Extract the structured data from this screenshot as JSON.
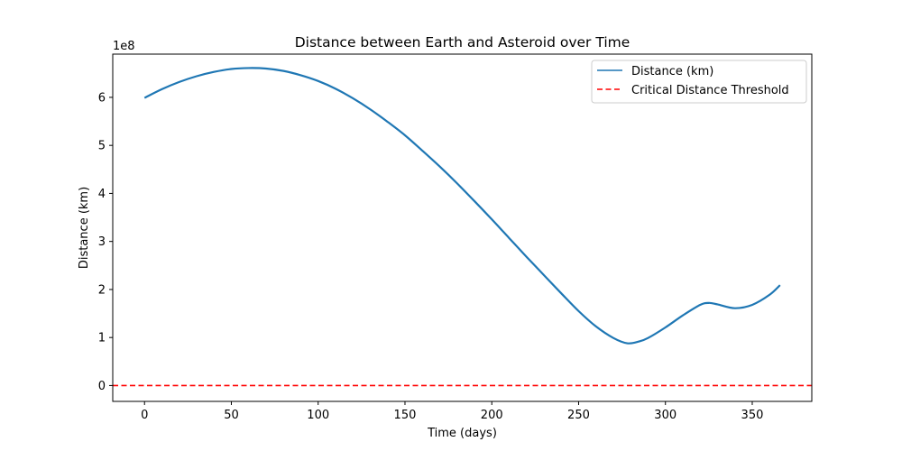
{
  "chart_data": {
    "type": "line",
    "title": "Distance between Earth and Asteroid over Time",
    "xlabel": "Time (days)",
    "ylabel": "Distance (km)",
    "y_multiplier_label": "1e8",
    "xlim": [
      -18.3,
      384.3
    ],
    "ylim": [
      -33000000.0,
      690000000.0
    ],
    "xticks": [
      0,
      50,
      100,
      150,
      200,
      250,
      300,
      350
    ],
    "yticks": [
      0,
      1,
      2,
      3,
      4,
      5,
      6
    ],
    "grid": false,
    "legend_position": "upper right",
    "series": [
      {
        "name": "Distance (km)",
        "color": "#1f77b4",
        "x": [
          0,
          10,
          20,
          30,
          40,
          50,
          60,
          70,
          80,
          90,
          100,
          110,
          120,
          130,
          140,
          150,
          160,
          170,
          180,
          190,
          200,
          210,
          220,
          230,
          240,
          250,
          260,
          270,
          278,
          285,
          290,
          300,
          310,
          320,
          325,
          330,
          340,
          350,
          360,
          366
        ],
        "y": [
          599000000.0,
          617000000.0,
          632000000.0,
          644000000.0,
          653000000.0,
          659000000.0,
          661000000.0,
          660000000.0,
          655000000.0,
          646000000.0,
          634000000.0,
          618000000.0,
          598000000.0,
          575000000.0,
          549000000.0,
          521000000.0,
          489000000.0,
          456000000.0,
          421000000.0,
          384000000.0,
          346000000.0,
          307000000.0,
          268000000.0,
          230000000.0,
          192000000.0,
          155000000.0,
          123000000.0,
          99000000.0,
          88000000.0,
          92000000.0,
          99000000.0,
          121000000.0,
          146000000.0,
          168000000.0,
          172000000.0,
          169000000.0,
          161000000.0,
          168000000.0,
          189000000.0,
          209000000.0
        ]
      },
      {
        "name": "Critical Distance Threshold",
        "color": "#ff0000",
        "style": "dashed",
        "y_constant": 0
      }
    ]
  }
}
